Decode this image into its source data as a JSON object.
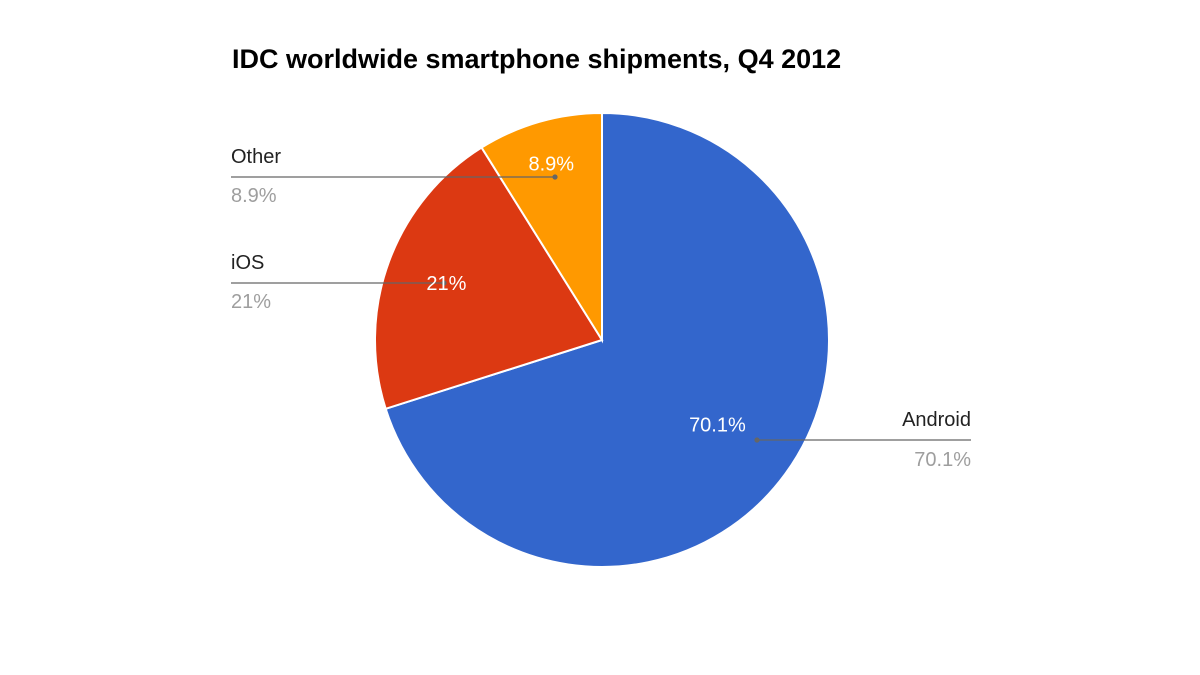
{
  "chart_data": {
    "type": "pie",
    "title": "IDC worldwide smartphone shipments, Q4 2012",
    "slices": [
      {
        "name": "Android",
        "value": 70.1,
        "label": "70.1%",
        "color": "#3366cc"
      },
      {
        "name": "iOS",
        "value": 21,
        "label": "21%",
        "color": "#dc3912"
      },
      {
        "name": "Other",
        "value": 8.9,
        "label": "8.9%",
        "color": "#ff9900"
      }
    ],
    "start_angle": "12 o'clock, clockwise",
    "legend": "labeled leader lines"
  }
}
